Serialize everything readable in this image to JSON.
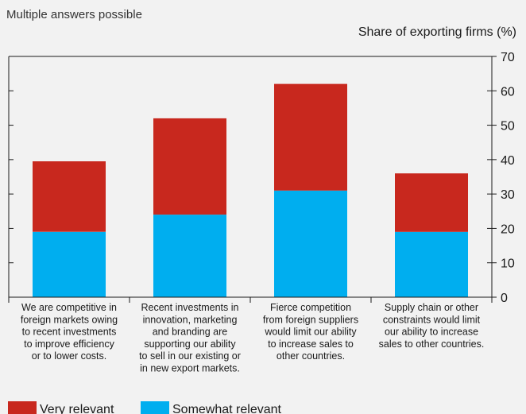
{
  "note": "Multiple answers possible",
  "chart_data": {
    "type": "bar",
    "stacked": true,
    "categories": [
      [
        "We are competitive in",
        "foreign markets owing",
        "to recent investments",
        "to improve efficiency",
        "or to lower costs."
      ],
      [
        "Recent investments in",
        "innovation, marketing",
        "and branding are",
        "supporting our ability",
        "to sell in our existing or",
        "in new export markets."
      ],
      [
        "Fierce competition",
        "from foreign suppliers",
        "would limit our ability",
        "to increase sales to",
        "other countries."
      ],
      [
        "Supply chain or other",
        "constraints would limit",
        "our ability to increase",
        "sales to other countries."
      ]
    ],
    "series": [
      {
        "name": "Somewhat relevant",
        "color": "#00aeef",
        "values": [
          19,
          24,
          31,
          19
        ]
      },
      {
        "name": "Very relevant",
        "color": "#c8281e",
        "values": [
          20.5,
          28,
          31,
          17
        ]
      }
    ],
    "ylabel": "Share of exporting firms (%)",
    "ylim": [
      0,
      70
    ],
    "yticks": [
      0,
      10,
      20,
      30,
      40,
      50,
      60,
      70
    ],
    "y_axis_side": "right",
    "grid": false,
    "legend_order": [
      "Very relevant",
      "Somewhat relevant"
    ],
    "legend_position": "bottom-left"
  }
}
